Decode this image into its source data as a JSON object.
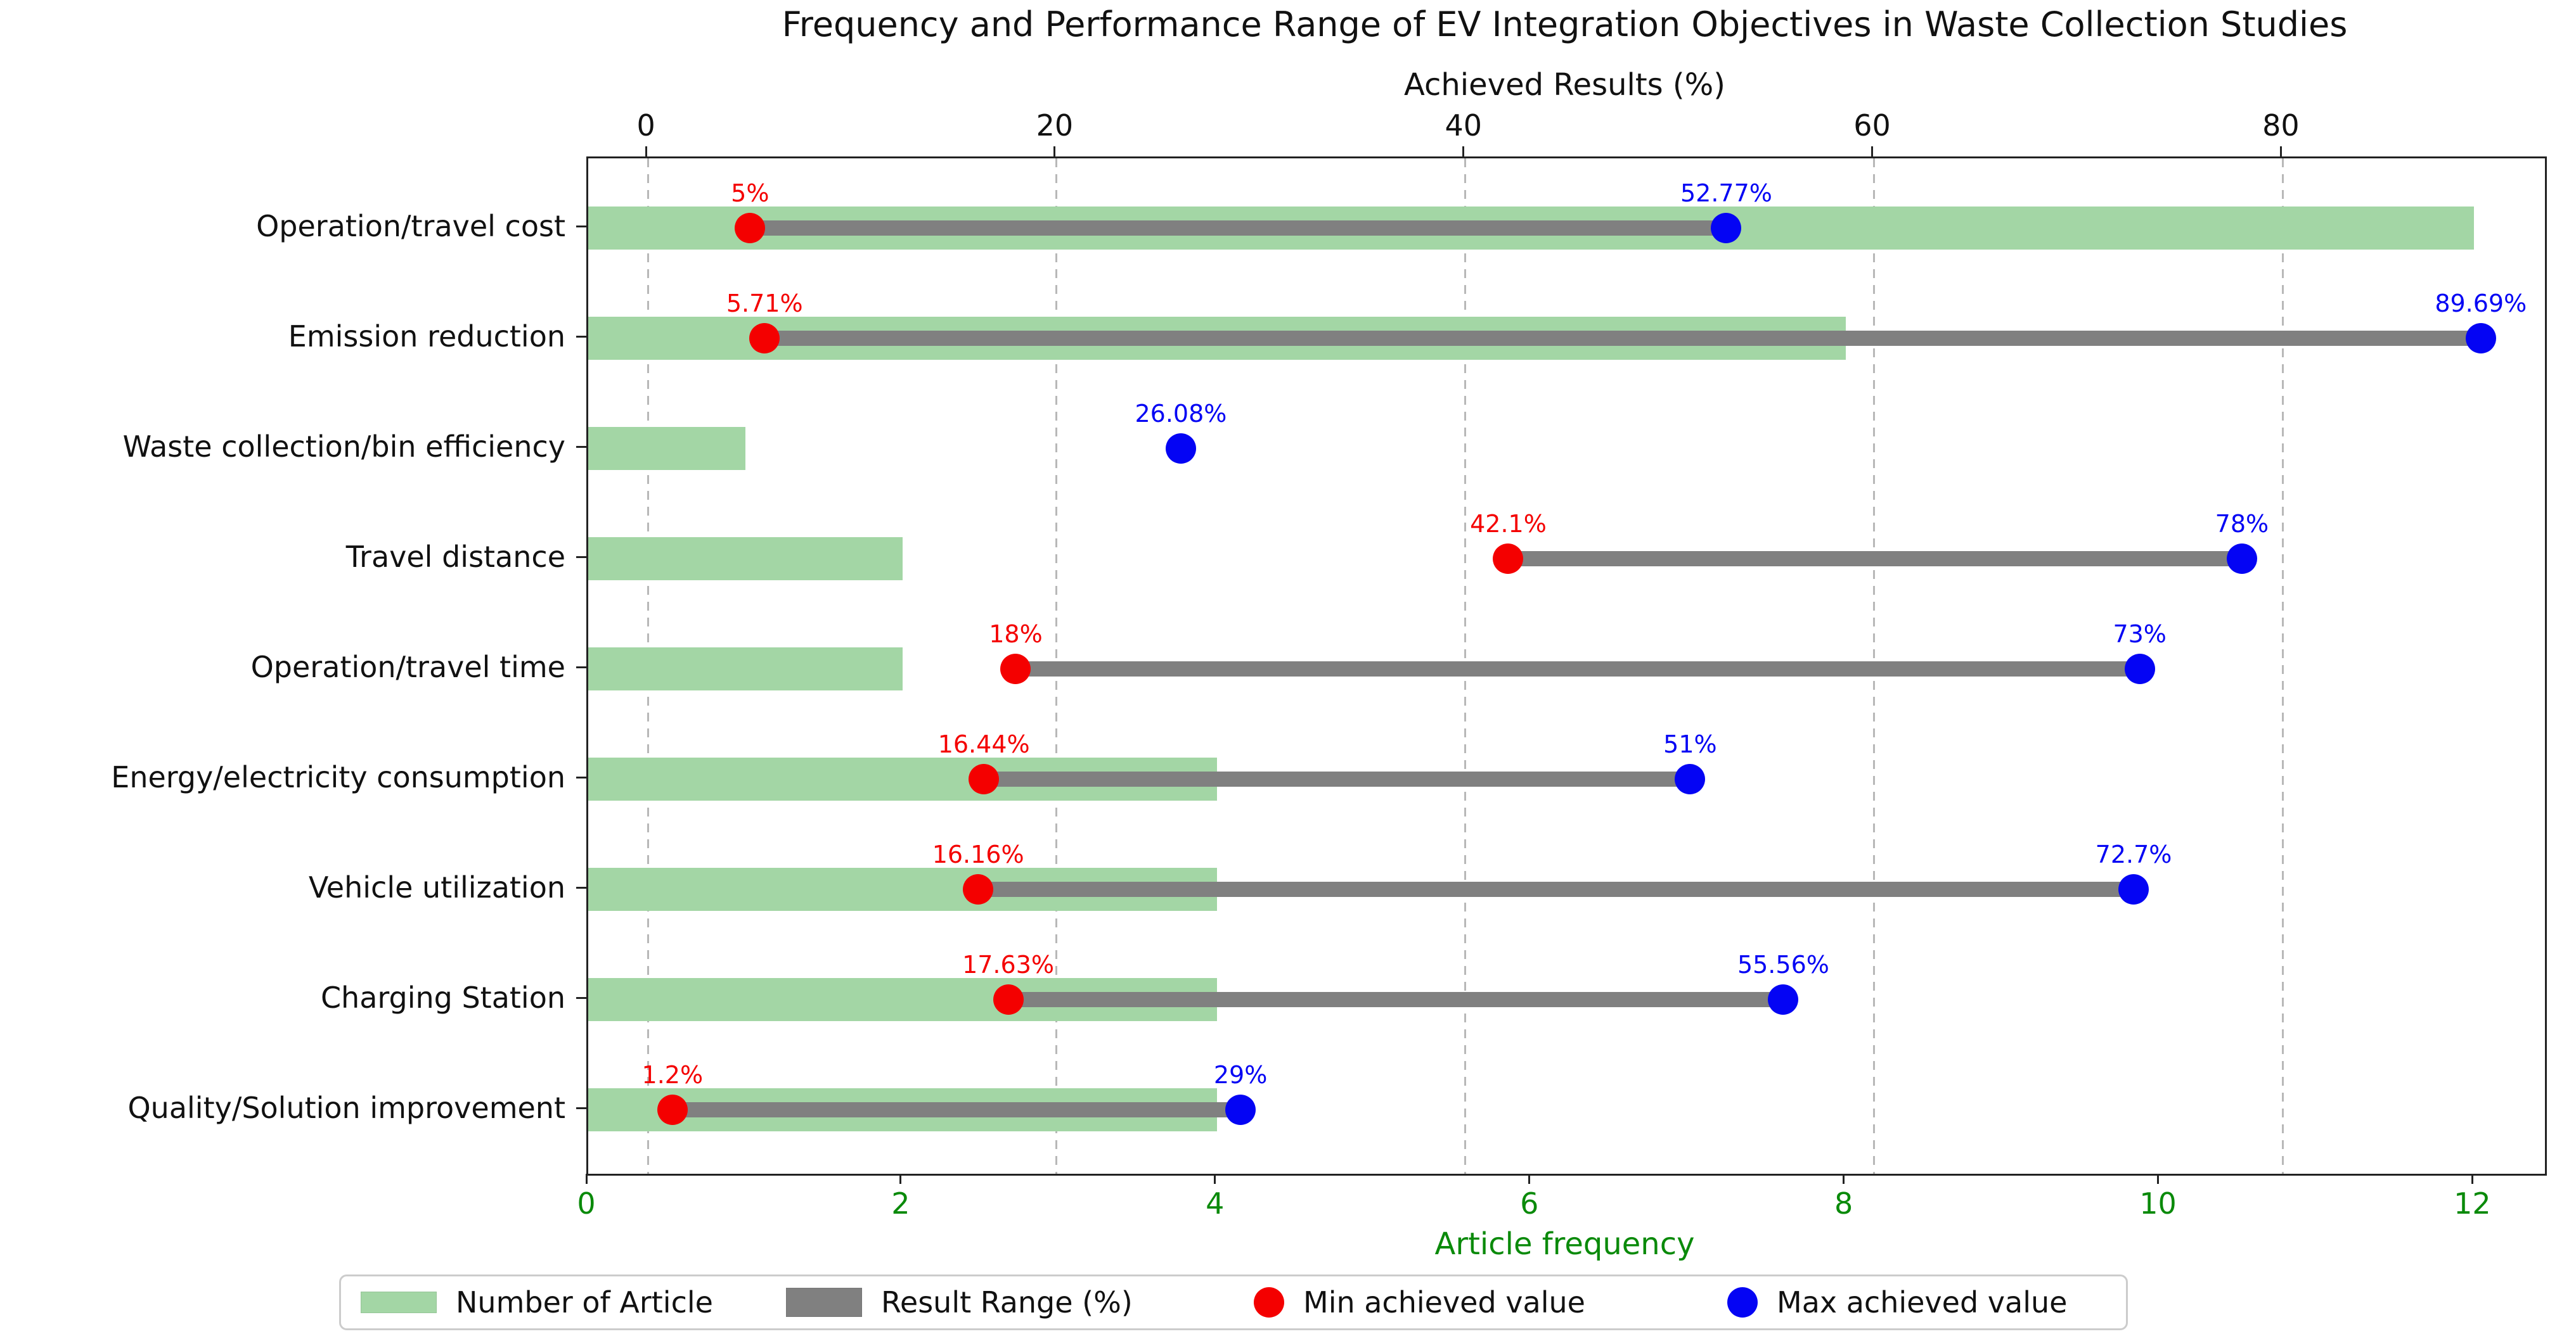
{
  "chart_data": {
    "type": "bar",
    "subtype": "horizontal-bar-with-dumbbell-range",
    "title": "Frequency and Performance Range of EV Integration Objectives in Waste Collection Studies",
    "categories": [
      "Operation/travel cost",
      "Emission reduction",
      "Waste collection/bin efficiency",
      "Travel distance",
      "Operation/travel time",
      "Energy/electricity consumption",
      "Vehicle utilization",
      "Charging Station",
      "Quality/Solution improvement"
    ],
    "series": [
      {
        "name": "Number of Article",
        "axis": "bottom",
        "values": [
          12,
          8,
          1,
          2,
          2,
          4,
          4,
          4,
          4
        ]
      },
      {
        "name": "Min achieved value",
        "axis": "top",
        "values": [
          5,
          5.71,
          null,
          42.1,
          18,
          16.44,
          16.16,
          17.63,
          1.2
        ]
      },
      {
        "name": "Max achieved value",
        "axis": "top",
        "values": [
          52.77,
          89.69,
          26.08,
          78,
          73,
          51,
          72.7,
          55.56,
          29
        ]
      }
    ],
    "min_labels": [
      "5%",
      "5.71%",
      null,
      "42.1%",
      "18%",
      "16.44%",
      "16.16%",
      "17.63%",
      "1.2%"
    ],
    "max_labels": [
      "52.77%",
      "89.69%",
      "26.08%",
      "78%",
      "73%",
      "51%",
      "72.7%",
      "55.56%",
      "29%"
    ],
    "top_axis": {
      "label": "Achieved Results (%)",
      "ticks": [
        0,
        20,
        40,
        60,
        80
      ],
      "min": -2.92,
      "max": 92.83
    },
    "bottom_axis": {
      "label": "Article frequency",
      "ticks": [
        0,
        2,
        4,
        6,
        8,
        10,
        12
      ],
      "min": 0,
      "max": 12.45
    },
    "grid": {
      "orientation": "vertical",
      "style": "dashed",
      "at_axis": "top"
    },
    "legend_position": "bottom"
  },
  "legend": {
    "items": [
      {
        "label": "Number of Article",
        "swatch": "bar",
        "color": "#a3d6a5",
        "height": 34
      },
      {
        "label": "Result Range (%)",
        "swatch": "bar",
        "color": "#808080",
        "height": 46
      },
      {
        "label": "Min achieved value",
        "swatch": "dot",
        "color": "#f40000",
        "height": 48
      },
      {
        "label": "Max achieved value",
        "swatch": "dot",
        "color": "#0404f4",
        "height": 48
      }
    ]
  },
  "colors": {
    "article_bar_green": "#a3d6a5",
    "range_bar_gray": "#808080",
    "min_dot_red": "#f40000",
    "max_dot_blue": "#0404f4",
    "axis_text_green": "#0a8a0a",
    "grid_gray": "#b8b8b8",
    "spine_black": "#222222"
  }
}
